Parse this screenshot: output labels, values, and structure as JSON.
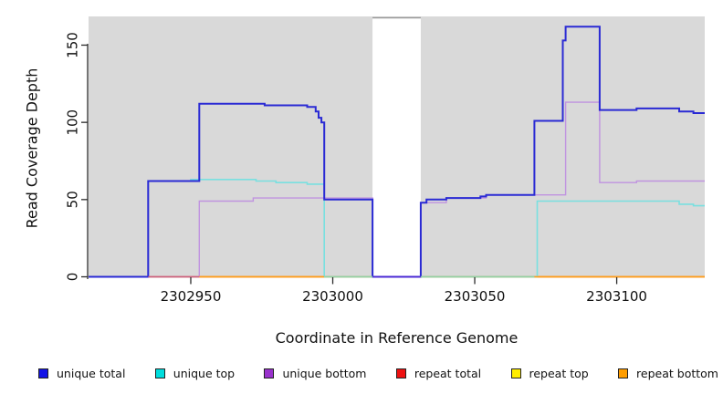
{
  "chart_data": {
    "type": "line",
    "subtype": "step-coverage",
    "title": "",
    "xlabel": "Coordinate in Reference Genome",
    "ylabel": "Read Coverage Depth",
    "xlim": [
      2302914,
      2303131
    ],
    "ylim": [
      0,
      168
    ],
    "x_ticks": [
      2302950,
      2303000,
      2303050,
      2303100
    ],
    "y_ticks": [
      0,
      50,
      100,
      150
    ],
    "grid": false,
    "legend_position": "bottom",
    "plot_bg": "#d9d9d9",
    "axis_color": "#2b2b2b",
    "masked_region": {
      "start": 2303014,
      "end": 2303031,
      "fill": "#ffffff",
      "top_border": "#9a9a9a"
    },
    "series": [
      {
        "name": "repeat top",
        "line_color": "#ffee00",
        "width": 1.4,
        "points": [
          [
            2302914,
            0
          ],
          [
            2303131,
            0
          ]
        ]
      },
      {
        "name": "repeat total",
        "line_color": "#cc5f7f",
        "width": 1.6,
        "points": [
          [
            2302914,
            0
          ],
          [
            2303131,
            0
          ]
        ]
      },
      {
        "name": "repeat bottom",
        "line_color": "#ff9e1b",
        "width": 1.6,
        "points": [
          [
            2302914,
            0
          ],
          [
            2303131,
            0
          ]
        ]
      },
      {
        "name": "unique bottom",
        "line_color": "#c093e0",
        "width": 1.4,
        "points": [
          [
            2302914,
            0
          ],
          [
            2302953,
            49
          ],
          [
            2302972,
            51
          ],
          [
            2303014,
            0
          ],
          [
            2303031,
            48
          ],
          [
            2303040,
            51
          ],
          [
            2303054,
            53
          ],
          [
            2303082,
            113
          ],
          [
            2303094,
            61
          ],
          [
            2303107,
            62
          ]
        ]
      },
      {
        "name": "unique top",
        "line_color": "#79e0e0",
        "width": 1.6,
        "points": [
          [
            2302914,
            0
          ],
          [
            2302935,
            62
          ],
          [
            2302950,
            63
          ],
          [
            2302973,
            62
          ],
          [
            2302980,
            61
          ],
          [
            2302991,
            60
          ],
          [
            2302997,
            0
          ],
          [
            2303072,
            49
          ],
          [
            2303122,
            47
          ],
          [
            2303127,
            46
          ]
        ]
      },
      {
        "name": "unique total",
        "line_color": "#2a2ad4",
        "width": 2,
        "points": [
          [
            2302914,
            0
          ],
          [
            2302935,
            62
          ],
          [
            2302953,
            112
          ],
          [
            2302976,
            111
          ],
          [
            2302991,
            110
          ],
          [
            2302994,
            107
          ],
          [
            2302995,
            103
          ],
          [
            2302996,
            100
          ],
          [
            2302997,
            50
          ],
          [
            2303014,
            0
          ],
          [
            2303031,
            48
          ],
          [
            2303033,
            50
          ],
          [
            2303040,
            51
          ],
          [
            2303052,
            52
          ],
          [
            2303054,
            53
          ],
          [
            2303071,
            101
          ],
          [
            2303081,
            153
          ],
          [
            2303082,
            162
          ],
          [
            2303094,
            108
          ],
          [
            2303107,
            109
          ],
          [
            2303122,
            107
          ],
          [
            2303127,
            106
          ]
        ]
      }
    ],
    "zero_overlays": [
      {
        "color": "#cc5f7f",
        "start": 2302935,
        "end": 2302953,
        "width": 1.6
      },
      {
        "color": "#ff9e1b",
        "start": 2302953,
        "end": 2302997,
        "width": 1.6
      },
      {
        "color": "#93d2a4",
        "start": 2302997,
        "end": 2303071,
        "width": 1.6
      },
      {
        "color": "#ff9e1b",
        "start": 2303071,
        "end": 2303131,
        "width": 1.6
      },
      {
        "color": "#4a2ad4",
        "start": 2303014,
        "end": 2303031,
        "width": 2
      }
    ],
    "legend": [
      {
        "label": "unique total",
        "color": "#1414e6"
      },
      {
        "label": "unique top",
        "color": "#00dddd"
      },
      {
        "label": "unique bottom",
        "color": "#9932cc"
      },
      {
        "label": "repeat total",
        "color": "#ee1111"
      },
      {
        "label": "repeat top",
        "color": "#ffee00"
      },
      {
        "label": "repeat bottom",
        "color": "#ff9d00"
      }
    ]
  }
}
